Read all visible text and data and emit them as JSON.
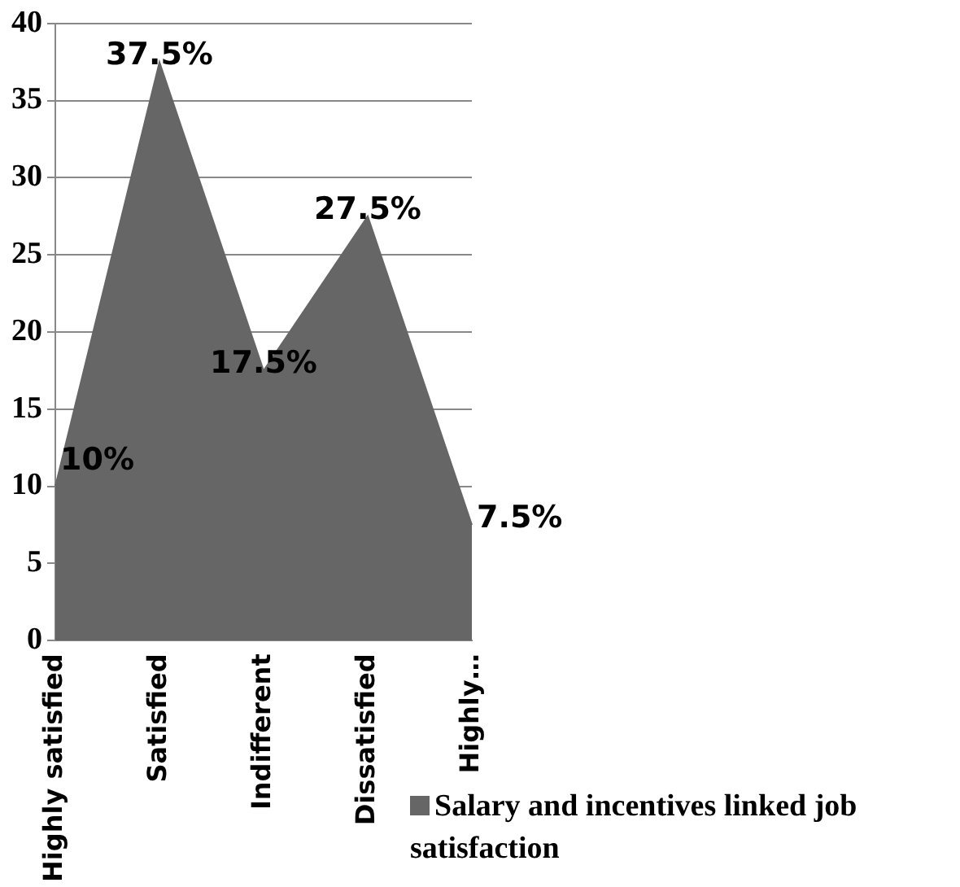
{
  "chart_data": {
    "type": "area",
    "categories": [
      "Highly satisfied",
      "Satisfied",
      "Indifferent",
      "Dissatisfied",
      "Highly…"
    ],
    "series": [
      {
        "name": "Salary and incentives linked job satisfaction",
        "color": "#666666",
        "values": [
          10,
          37.5,
          17.5,
          27.5,
          7.5
        ],
        "value_labels": [
          "10%",
          "37.5%",
          "17.5%",
          "27.5%",
          "7.5%"
        ]
      }
    ],
    "ylim": [
      0,
      40
    ],
    "yticks": [
      0,
      5,
      10,
      15,
      20,
      25,
      30,
      35,
      40
    ],
    "grid": "y",
    "legend": "bottom right"
  }
}
